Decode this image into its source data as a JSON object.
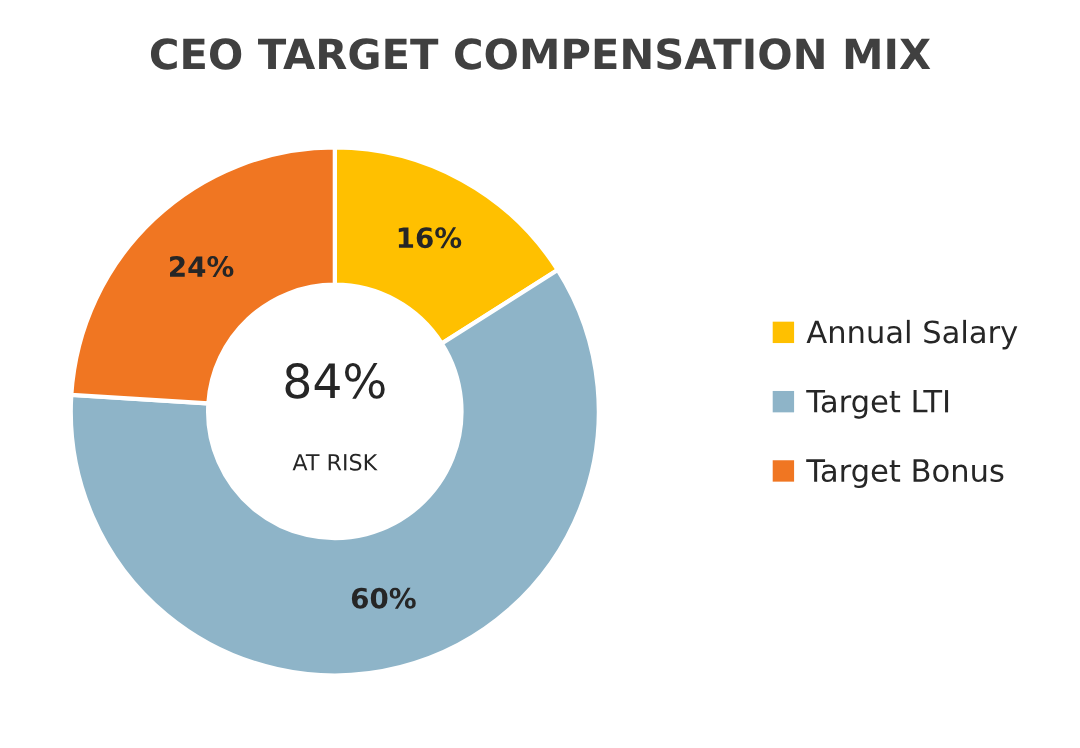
{
  "chart_data": {
    "type": "donut",
    "title": "CEO TARGET COMPENSATION MIX",
    "categories": [
      "Annual Salary",
      "Target LTI",
      "Target Bonus"
    ],
    "values": [
      16,
      60,
      24
    ],
    "colors": [
      "#ffc000",
      "#8eb4c8",
      "#f07622"
    ],
    "value_labels": [
      "16%",
      "60%",
      "24%"
    ],
    "annotations": [
      "84%",
      "AT RISK"
    ],
    "legend": "right"
  }
}
